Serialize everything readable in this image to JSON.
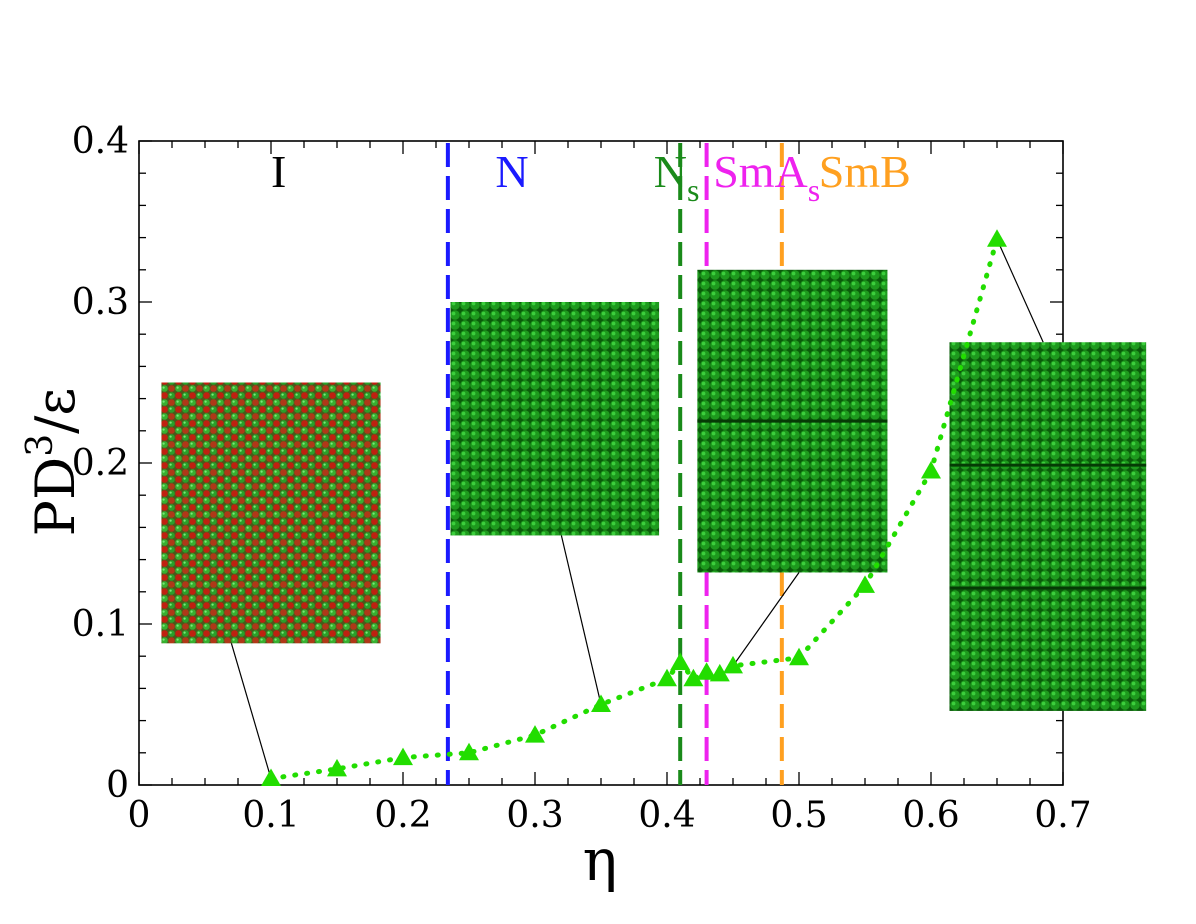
{
  "chart_data": {
    "type": "scatter",
    "xlabel": "η",
    "ylabel_main": "PD",
    "ylabel_sup": "3",
    "ylabel_rest": "/ε",
    "xlim": [
      0,
      0.7
    ],
    "ylim": [
      0,
      0.4
    ],
    "xticks": [
      {
        "v": 0,
        "label": "0"
      },
      {
        "v": 0.1,
        "label": "0.1"
      },
      {
        "v": 0.2,
        "label": "0.2"
      },
      {
        "v": 0.3,
        "label": "0.3"
      },
      {
        "v": 0.4,
        "label": "0.4"
      },
      {
        "v": 0.5,
        "label": "0.5"
      },
      {
        "v": 0.6,
        "label": "0.6"
      },
      {
        "v": 0.7,
        "label": "0.7"
      }
    ],
    "yticks": [
      {
        "v": 0,
        "label": "0"
      },
      {
        "v": 0.1,
        "label": "0.1"
      },
      {
        "v": 0.2,
        "label": "0.2"
      },
      {
        "v": 0.3,
        "label": "0.3"
      },
      {
        "v": 0.4,
        "label": "0.4"
      }
    ],
    "series": [
      {
        "name": "pressure",
        "color": "#22dd00",
        "marker": "triangle",
        "line": "dotted",
        "x": [
          0.1,
          0.15,
          0.2,
          0.25,
          0.3,
          0.35,
          0.4,
          0.41,
          0.42,
          0.43,
          0.44,
          0.45,
          0.5,
          0.55,
          0.6,
          0.65
        ],
        "y": [
          0.004,
          0.01,
          0.017,
          0.02,
          0.031,
          0.05,
          0.066,
          0.076,
          0.066,
          0.07,
          0.069,
          0.074,
          0.079,
          0.124,
          0.195,
          0.339
        ]
      }
    ],
    "phase_boundaries": [
      {
        "x": 0.234,
        "color": "#1a1aff",
        "dash": "long"
      },
      {
        "x": 0.41,
        "color": "#1a8a1a",
        "dash": "long"
      },
      {
        "x": 0.43,
        "color": "#ee22ee",
        "dash": "long"
      },
      {
        "x": 0.487,
        "color": "#ffa020",
        "dash": "long"
      }
    ],
    "phase_labels": [
      {
        "text": "I",
        "sub": "",
        "color": "#000000",
        "x": 0.1
      },
      {
        "text": "N",
        "sub": "",
        "color": "#1a1aff",
        "x": 0.27
      },
      {
        "text": "N",
        "sub": "s",
        "color": "#1a8a1a",
        "x": 0.39
      },
      {
        "text": "SmA",
        "sub": "s",
        "color": "#ee22ee",
        "x": 0.435
      },
      {
        "text": "SmB",
        "sub": "",
        "color": "#ffa020",
        "x": 0.515
      }
    ],
    "insets": [
      {
        "name": "isotropic",
        "style": "mixed",
        "x0": 0.017,
        "x1": 0.183,
        "y0": 0.088,
        "y1": 0.25,
        "ptr_x": 0.1,
        "ptr_y": 0.004,
        "from_x": 0.07,
        "from_y": 0.088
      },
      {
        "name": "nematic",
        "style": "green",
        "x0": 0.236,
        "x1": 0.394,
        "y0": 0.155,
        "y1": 0.3,
        "ptr_x": 0.35,
        "ptr_y": 0.05,
        "from_x": 0.32,
        "from_y": 0.155
      },
      {
        "name": "smectic-a",
        "style": "layers2",
        "x0": 0.423,
        "x1": 0.567,
        "y0": 0.132,
        "y1": 0.32,
        "ptr_x": 0.45,
        "ptr_y": 0.074,
        "from_x": 0.5,
        "from_y": 0.132
      },
      {
        "name": "smectic-b",
        "style": "layers3",
        "x0": 0.614,
        "x1": 0.763,
        "y0": 0.046,
        "y1": 0.275,
        "ptr_x": 0.65,
        "ptr_y": 0.339,
        "from_x": 0.685,
        "from_y": 0.275
      }
    ]
  }
}
